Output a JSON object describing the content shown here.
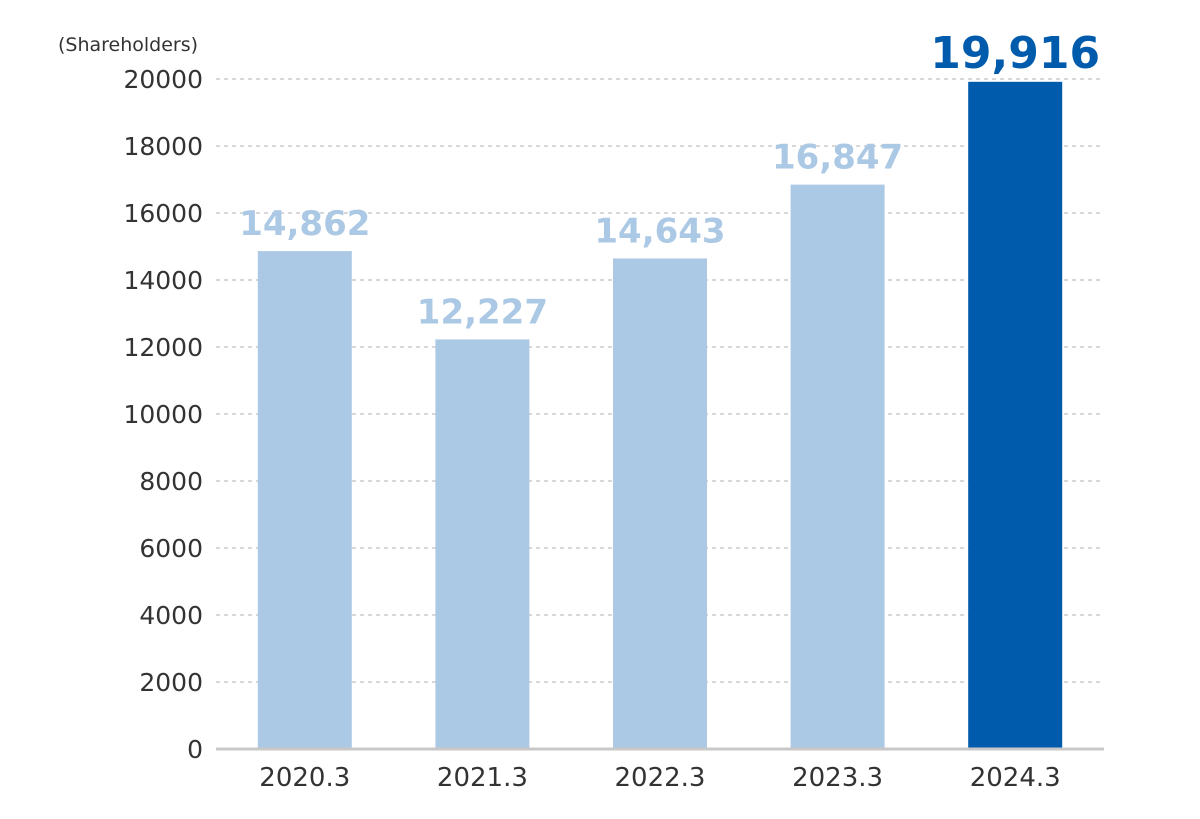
{
  "chart_data": {
    "type": "bar",
    "title": "",
    "ylabel": "(Shareholders)",
    "xlabel": "",
    "categories": [
      "2020.3",
      "2021.3",
      "2022.3",
      "2023.3",
      "2024.3"
    ],
    "values": [
      14862,
      12227,
      14643,
      16847,
      19916
    ],
    "value_labels": [
      "14,862",
      "12,227",
      "14,643",
      "16,847",
      "19,916"
    ],
    "highlight_index": 4,
    "ylim": [
      0,
      20000
    ],
    "yticks": [
      0,
      2000,
      4000,
      6000,
      8000,
      10000,
      12000,
      14000,
      16000,
      18000,
      20000
    ],
    "ytick_labels": [
      "0",
      "2000",
      "4000",
      "6000",
      "8000",
      "10000",
      "12000",
      "14000",
      "16000",
      "18000",
      "20000"
    ],
    "grid": true,
    "legend": "none",
    "colors": {
      "bar": "#abc8e4",
      "bar_highlight": "#005bac",
      "label": "#abc8e4",
      "label_highlight": "#005bac",
      "grid": "#b0b0b0",
      "axis": "#c8c8c8"
    }
  }
}
